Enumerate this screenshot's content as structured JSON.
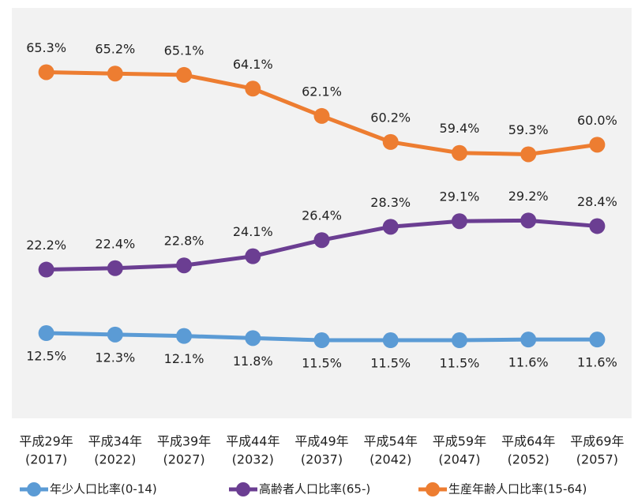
{
  "chart_data": {
    "type": "line",
    "categories": [
      "平成29年",
      "平成34年",
      "平成39年",
      "平成44年",
      "平成49年",
      "平成54年",
      "平成59年",
      "平成64年",
      "平成69年"
    ],
    "category_years": [
      "(2017)",
      "(2022)",
      "(2027)",
      "(2032)",
      "(2037)",
      "(2042)",
      "(2047)",
      "(2052)",
      "(2057)"
    ],
    "series": [
      {
        "name": "年少人口比率(0-14)",
        "color": "#5b9bd5",
        "label_position": "below",
        "ylim": [
          0.5,
          58.3
        ],
        "values": [
          12.5,
          12.3,
          12.1,
          11.8,
          11.5,
          11.5,
          11.5,
          11.6,
          11.6
        ],
        "value_labels": [
          "12.5%",
          "12.3%",
          "12.1%",
          "11.8%",
          "11.5%",
          "11.5%",
          "11.5%",
          "11.6%",
          "11.6%"
        ]
      },
      {
        "name": "高齢者人口比率(65-)",
        "color": "#6b3e92",
        "label_position": "above",
        "ylim": [
          1,
          59.5
        ],
        "values": [
          22.2,
          22.4,
          22.8,
          24.1,
          26.4,
          28.3,
          29.1,
          29.2,
          28.4
        ],
        "value_labels": [
          "22.2%",
          "22.4%",
          "22.8%",
          "24.1%",
          "26.4%",
          "28.3%",
          "29.1%",
          "29.2%",
          "28.4%"
        ]
      },
      {
        "name": "生産年齢人口比率(15-64)",
        "color": "#ed7d31",
        "label_position": "above",
        "ylim": [
          40,
          70
        ],
        "values": [
          65.3,
          65.2,
          65.1,
          64.1,
          62.1,
          60.2,
          59.4,
          59.3,
          60.0
        ],
        "value_labels": [
          "65.3%",
          "65.2%",
          "65.1%",
          "64.1%",
          "62.1%",
          "60.2%",
          "59.4%",
          "59.3%",
          "60.0%"
        ]
      }
    ],
    "legend": "bottom"
  }
}
